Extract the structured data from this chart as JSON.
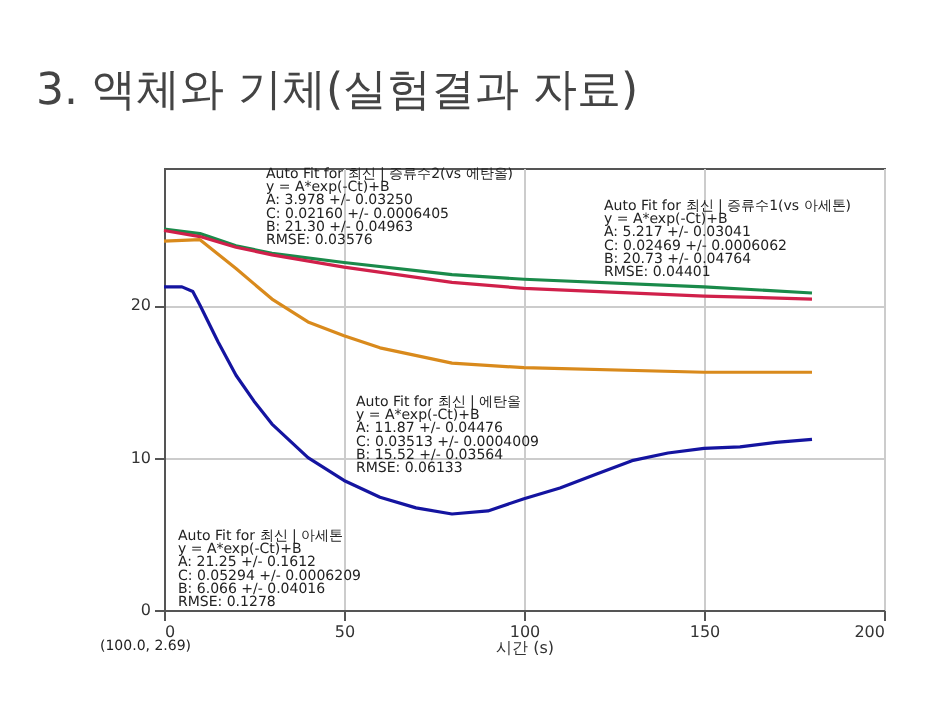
{
  "chart_data": {
    "type": "line",
    "title": "3. 액체와 기체(실험결과 자료)",
    "xlabel": "시간 (s)",
    "xlim": [
      0,
      200
    ],
    "xticks": [
      0,
      50,
      100,
      150,
      200
    ],
    "ylim": [
      0,
      29
    ],
    "yticks": [
      0,
      10,
      20
    ],
    "grid": true,
    "legend": false,
    "marker": "none",
    "line_style": "solid",
    "series": [
      {
        "color": "#1a8a4a",
        "x": [
          0,
          10,
          20,
          30,
          50,
          80,
          100,
          150,
          180
        ],
        "values": [
          25.0,
          24.7,
          23.9,
          23.4,
          22.8,
          22.0,
          21.7,
          21.2,
          20.8
        ]
      },
      {
        "color": "#d0204a",
        "x": [
          0,
          10,
          20,
          30,
          50,
          80,
          100,
          150,
          180
        ],
        "values": [
          24.9,
          24.5,
          23.8,
          23.3,
          22.5,
          21.5,
          21.1,
          20.6,
          20.4
        ]
      },
      {
        "color": "#d98a1c",
        "x": [
          0,
          10,
          20,
          30,
          40,
          50,
          60,
          80,
          100,
          150,
          180
        ],
        "values": [
          24.2,
          24.3,
          22.4,
          20.4,
          18.9,
          18.0,
          17.2,
          16.2,
          15.9,
          15.6,
          15.6
        ]
      },
      {
        "color": "#1414a0",
        "x": [
          0,
          5,
          8,
          10,
          15,
          20,
          25,
          30,
          40,
          50,
          60,
          70,
          80,
          90,
          100,
          110,
          120,
          130,
          140,
          150,
          160,
          170,
          180
        ],
        "values": [
          21.2,
          21.2,
          20.9,
          20.0,
          17.6,
          15.4,
          13.7,
          12.2,
          10.0,
          8.5,
          7.4,
          6.7,
          6.3,
          6.5,
          7.3,
          8.0,
          8.9,
          9.8,
          10.3,
          10.6,
          10.7,
          11.0,
          11.2
        ]
      }
    ],
    "annotations": [
      "Auto Fit for  최신 | 증류수2(vs 에탄올)\ny = A*exp(-Ct)+B\nA: 3.978 +/- 0.03250\nC: 0.02160 +/- 0.0006405\nB: 21.30 +/- 0.04963\nRMSE: 0.03576",
      "Auto Fit for  최신 | 증류수1(vs 아세톤)\ny = A*exp(-Ct)+B\nA: 5.217 +/- 0.03041\nC: 0.02469 +/- 0.0006062\nB: 20.73 +/- 0.04764\nRMSE: 0.04401",
      "Auto Fit for  최신 | 에탄올\ny = A*exp(-Ct)+B\nA: 11.87 +/- 0.04476\nC: 0.03513 +/- 0.0004009\nB: 15.52 +/- 0.03564\nRMSE: 0.06133",
      "Auto Fit for  최신 | 아세톤\ny = A*exp(-Ct)+B\nA: 21.25 +/- 0.1612\nC: 0.05294 +/- 0.0006209\nB: 6.066 +/- 0.04016\nRMSE: 0.1278",
      "(100.0, 2.69)"
    ]
  }
}
